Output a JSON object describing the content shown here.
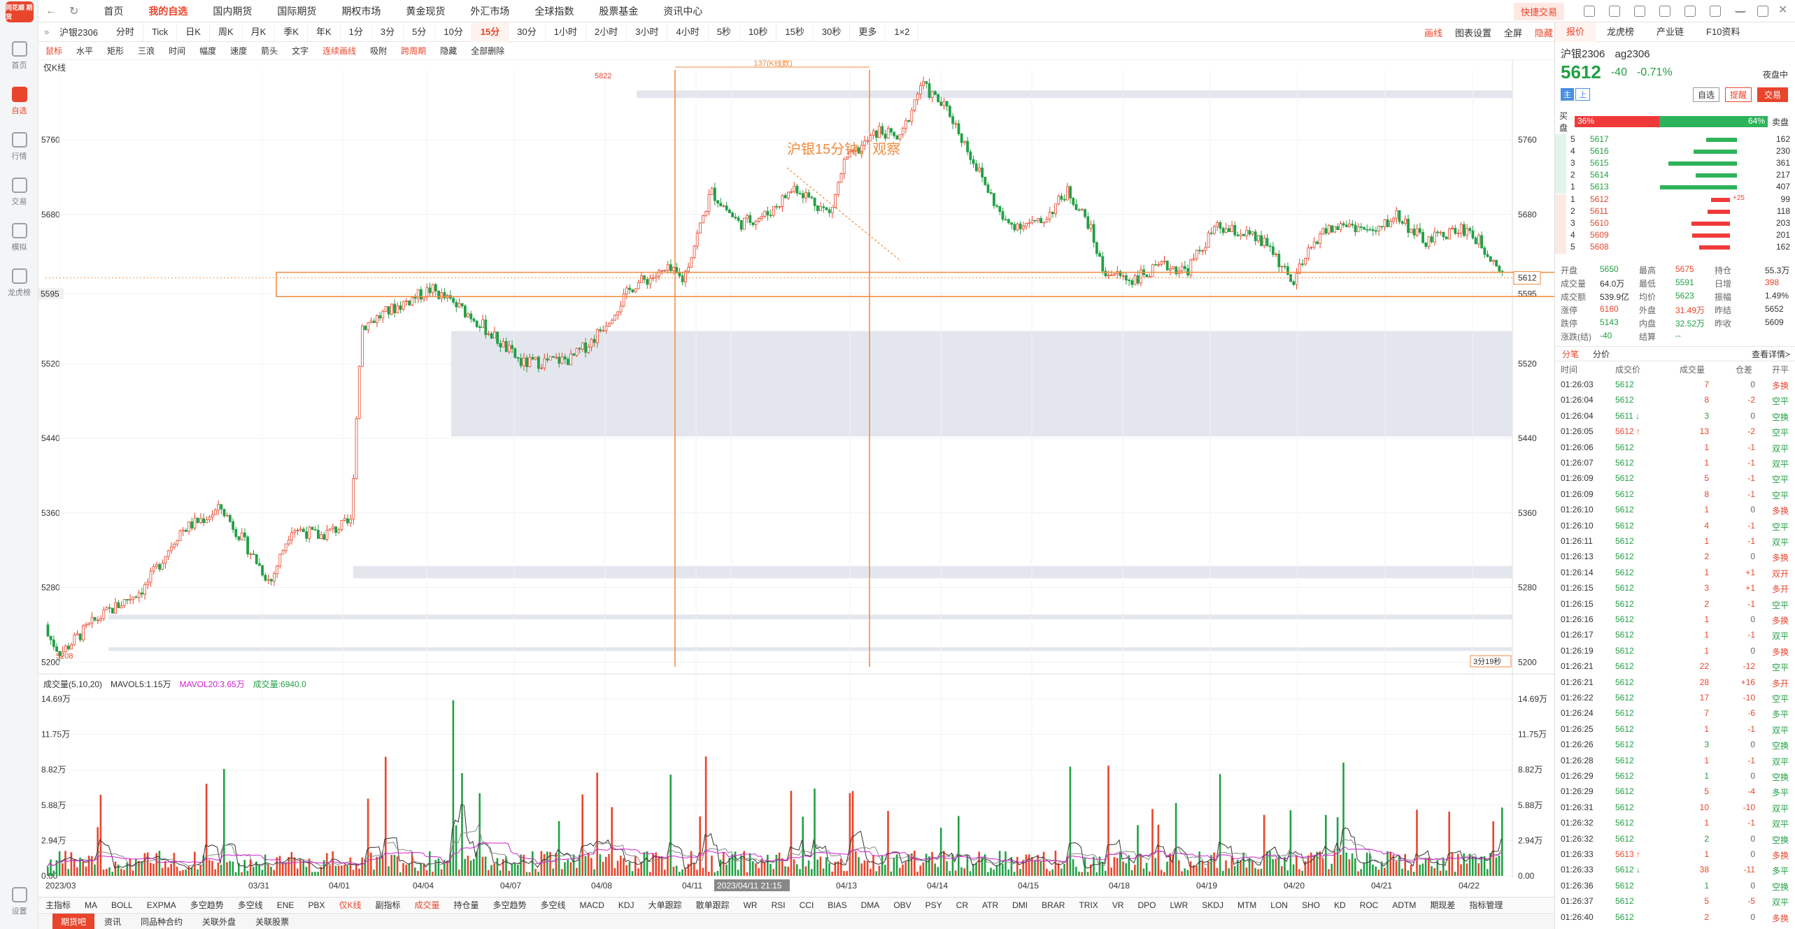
{
  "sidebar": {
    "logo": "同花顺 期货",
    "items": [
      {
        "label": "首页",
        "icon": "home-icon"
      },
      {
        "label": "自选",
        "icon": "star-icon"
      },
      {
        "label": "行情",
        "icon": "chart-icon"
      },
      {
        "label": "交易",
        "icon": "trade-icon"
      },
      {
        "label": "模拟",
        "icon": "gamepad-icon"
      },
      {
        "label": "龙虎榜",
        "icon": "database-icon"
      }
    ],
    "bottom": {
      "label": "设置",
      "icon": "chat-icon"
    }
  },
  "topnav": {
    "items": [
      "首页",
      "我的自选",
      "国内期货",
      "国际期货",
      "期权市场",
      "黄金现货",
      "外汇市场",
      "全球指数",
      "股票基金",
      "资讯中心"
    ],
    "active": "我的自选",
    "quick_trade": "快捷交易"
  },
  "toolbar1": {
    "symbol_short": "沪银2306",
    "timeframes": [
      "分时",
      "Tick",
      "日K",
      "周K",
      "月K",
      "季K",
      "年K",
      "1分",
      "3分",
      "5分",
      "10分",
      "15分",
      "30分",
      "1小时",
      "2小时",
      "3小时",
      "4小时",
      "5秒",
      "10秒",
      "15秒",
      "30秒",
      "更多",
      "1×2"
    ],
    "active": "15分",
    "right": [
      "画线",
      "图表设置",
      "全屏",
      "隐藏"
    ]
  },
  "toolbar2": {
    "tools": [
      "鼠标",
      "水平",
      "矩形",
      "三浪",
      "时间",
      "幅度",
      "速度",
      "箭头",
      "文字",
      "连续画线",
      "吸附",
      "跨周期",
      "隐藏",
      "全部删除"
    ]
  },
  "chart": {
    "kline_label": "仅K线",
    "price_axis": [
      "5760",
      "5680",
      "5595",
      "5520",
      "5440",
      "5360",
      "5280",
      "5200"
    ],
    "high_label": "5822",
    "low_label": "5208",
    "level_label": "5595",
    "last_price_tag": "5612",
    "annotation": "沪银15分钟，观察",
    "range_label": "137(K线数)",
    "countdown": "3分19秒",
    "date_axis": [
      "2023/03",
      "03/31",
      "04/01",
      "04/04",
      "04/07",
      "04/08",
      "04/11",
      "2023/04/11 21:15",
      "04/13",
      "04/14",
      "04/15",
      "04/18",
      "04/19",
      "04/20",
      "04/21",
      "04/22"
    ],
    "volume_header": {
      "title": "成交量(5,10,20)",
      "mavol5": "MAVOL5:1.15万",
      "mavol20": "MAVOL20:3.65万",
      "vol": "成交量:6940.0"
    },
    "volume_axis": [
      "14.69万",
      "11.75万",
      "8.82万",
      "5.88万",
      "2.94万",
      "0.00"
    ]
  },
  "indicator_tabs": [
    "主指标",
    "MA",
    "BOLL",
    "EXPMA",
    "多空趋势",
    "多空线",
    "ENE",
    "PBX",
    "仅K线",
    "副指标",
    "成交量",
    "持仓量",
    "多空趋势",
    "多空线",
    "MACD",
    "KDJ",
    "大单跟踪",
    "散单跟踪",
    "WR",
    "RSI",
    "CCI",
    "BIAS",
    "DMA",
    "OBV",
    "PSY",
    "CR",
    "ATR",
    "DMI",
    "BRAR",
    "TRIX",
    "VR",
    "DPO",
    "LWR",
    "SKDJ",
    "MTM",
    "LON",
    "SHO",
    "KD",
    "ROC",
    "ADTM",
    "期现差",
    "指标管理"
  ],
  "bottom_tabs": [
    "期货吧",
    "资讯",
    "同品种合约",
    "关联外盘",
    "关联股票"
  ],
  "rpanel": {
    "tabs": [
      "报价",
      "龙虎榜",
      "产业链",
      "F10资料"
    ],
    "name": "沪银2306",
    "code": "ag2306",
    "price": "5612",
    "change": "-40",
    "change_pct": "-0.71%",
    "session": "夜盘中",
    "btn_watch": "自选",
    "btn_alert": "提醒",
    "btn_trade": "交易",
    "buy_label": "买盘",
    "sell_label": "卖盘",
    "buy_pct": "36%",
    "sell_pct": "64%",
    "asks": [
      {
        "lvl": "5",
        "price": "5617",
        "vol": "162"
      },
      {
        "lvl": "4",
        "price": "5616",
        "vol": "230"
      },
      {
        "lvl": "3",
        "price": "5615",
        "vol": "361"
      },
      {
        "lvl": "2",
        "price": "5614",
        "vol": "217"
      },
      {
        "lvl": "1",
        "price": "5613",
        "vol": "407"
      }
    ],
    "bids": [
      {
        "lvl": "1",
        "price": "5612",
        "vol": "99",
        "extra": "+25"
      },
      {
        "lvl": "2",
        "price": "5611",
        "vol": "118"
      },
      {
        "lvl": "3",
        "price": "5610",
        "vol": "203"
      },
      {
        "lvl": "4",
        "price": "5609",
        "vol": "201"
      },
      {
        "lvl": "5",
        "price": "5608",
        "vol": "162"
      }
    ],
    "stats": [
      [
        "开盘",
        "5650",
        "最高",
        "5675",
        "持仓",
        "55.3万"
      ],
      [
        "成交量",
        "64.0万",
        "最低",
        "5591",
        "日增",
        "398"
      ],
      [
        "成交额",
        "539.9亿",
        "均价",
        "5623",
        "振幅",
        "1.49%"
      ],
      [
        "涨停",
        "6160",
        "外盘",
        "31.49万",
        "昨结",
        "5652"
      ],
      [
        "跌停",
        "5143",
        "内盘",
        "32.52万",
        "昨收",
        "5609"
      ],
      [
        "涨跌(结)",
        "-40",
        "结算",
        "--",
        "",
        ""
      ]
    ],
    "tick_tabs": [
      "分笔",
      "分价"
    ],
    "tick_more": "查看详情>",
    "tick_headers": [
      "时间",
      "成交价",
      "成交量",
      "仓差",
      "开平"
    ],
    "ticks": [
      [
        "01:26:03",
        "5612",
        "7",
        "0",
        "多换"
      ],
      [
        "01:26:04",
        "5612",
        "8",
        "-2",
        "空平"
      ],
      [
        "01:26:04",
        "5611 ↓",
        "3",
        "0",
        "空换"
      ],
      [
        "01:26:05",
        "5612 ↑",
        "13",
        "-2",
        "空平"
      ],
      [
        "01:26:06",
        "5612",
        "1",
        "-1",
        "双平"
      ],
      [
        "01:26:07",
        "5612",
        "1",
        "-1",
        "双平"
      ],
      [
        "01:26:09",
        "5612",
        "5",
        "-1",
        "空平"
      ],
      [
        "01:26:09",
        "5612",
        "8",
        "-1",
        "空平"
      ],
      [
        "01:26:10",
        "5612",
        "1",
        "0",
        "多换"
      ],
      [
        "01:26:10",
        "5612",
        "4",
        "-1",
        "空平"
      ],
      [
        "01:26:11",
        "5612",
        "1",
        "-1",
        "双平"
      ],
      [
        "01:26:13",
        "5612",
        "2",
        "0",
        "多换"
      ],
      [
        "01:26:14",
        "5612",
        "1",
        "+1",
        "双开"
      ],
      [
        "01:26:15",
        "5612",
        "3",
        "+1",
        "多开"
      ],
      [
        "01:26:15",
        "5612",
        "2",
        "-1",
        "空平"
      ],
      [
        "01:26:16",
        "5612",
        "1",
        "0",
        "多换"
      ],
      [
        "01:26:17",
        "5612",
        "1",
        "-1",
        "双平"
      ],
      [
        "01:26:19",
        "5612",
        "1",
        "0",
        "多换"
      ],
      [
        "01:26:21",
        "5612",
        "22",
        "-12",
        "空平"
      ],
      [
        "01:26:21",
        "5612",
        "28",
        "+16",
        "多开"
      ],
      [
        "01:26:22",
        "5612",
        "17",
        "-10",
        "空平"
      ],
      [
        "01:26:24",
        "5612",
        "7",
        "-6",
        "多平"
      ],
      [
        "01:26:25",
        "5612",
        "1",
        "-1",
        "双平"
      ],
      [
        "01:26:26",
        "5612",
        "3",
        "0",
        "空换"
      ],
      [
        "01:26:28",
        "5612",
        "1",
        "-1",
        "双平"
      ],
      [
        "01:26:29",
        "5612",
        "1",
        "0",
        "空换"
      ],
      [
        "01:26:29",
        "5612",
        "5",
        "-4",
        "多平"
      ],
      [
        "01:26:31",
        "5612",
        "10",
        "-10",
        "双平"
      ],
      [
        "01:26:32",
        "5612",
        "1",
        "-1",
        "双平"
      ],
      [
        "01:26:32",
        "5612",
        "2",
        "0",
        "空换"
      ],
      [
        "01:26:33",
        "5613 ↑",
        "1",
        "0",
        "多换"
      ],
      [
        "01:26:33",
        "5612 ↓",
        "38",
        "-11",
        "多平"
      ],
      [
        "01:26:36",
        "5612",
        "1",
        "0",
        "空换"
      ],
      [
        "01:26:37",
        "5612",
        "5",
        "-5",
        "双平"
      ],
      [
        "01:26:40",
        "5612",
        "2",
        "0",
        "多换"
      ]
    ]
  },
  "colors": {
    "up": "#e8452c",
    "down": "#22a045",
    "accent": "#e8452c"
  }
}
